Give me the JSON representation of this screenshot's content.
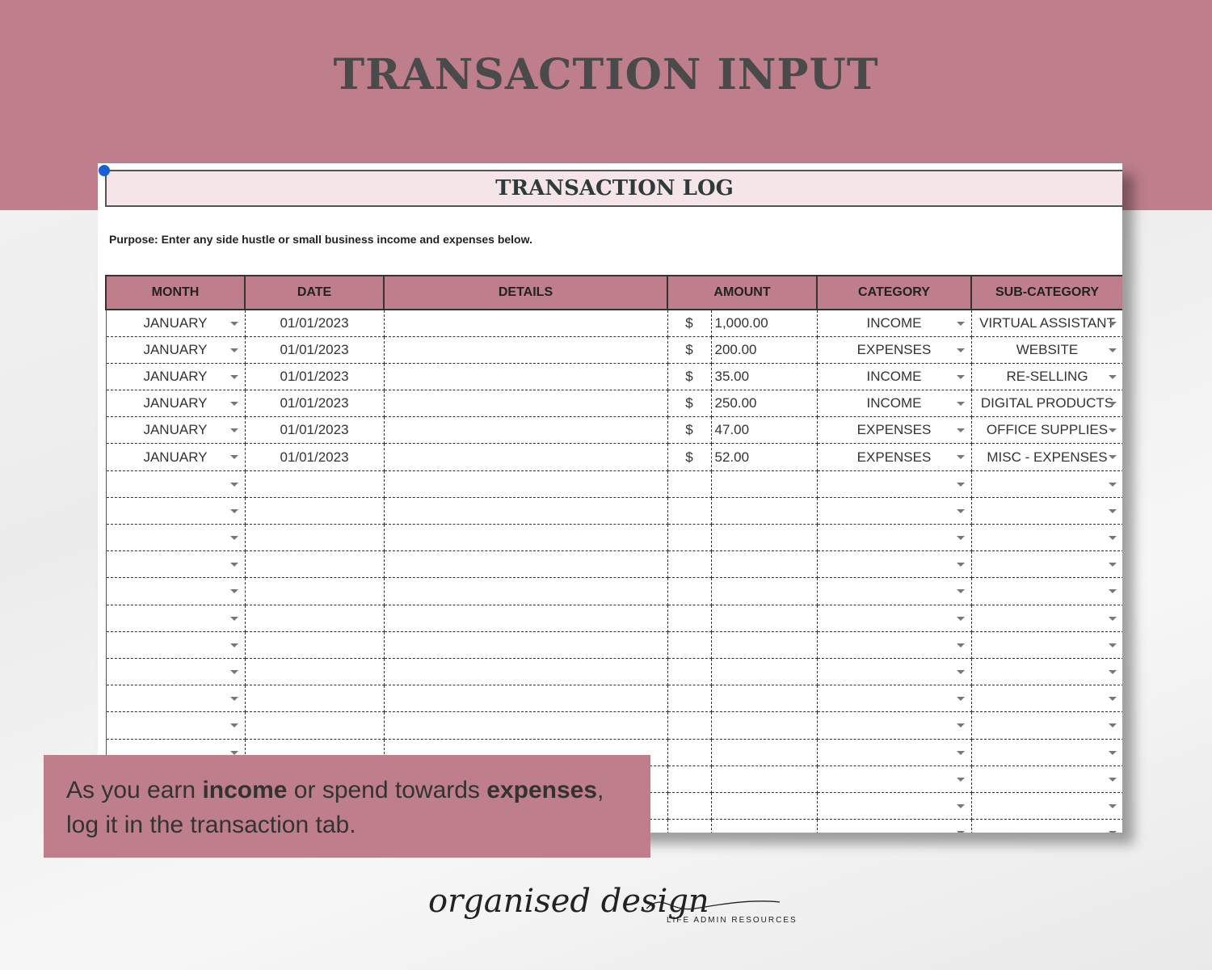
{
  "header": {
    "title": "TRANSACTION INPUT"
  },
  "sheet": {
    "title": "TRANSACTION LOG",
    "purpose": "Purpose: Enter any side hustle or small business income and expenses below.",
    "columns": [
      "MONTH",
      "DATE",
      "DETAILS",
      "AMOUNT",
      "CATEGORY",
      "SUB-CATEGORY"
    ],
    "currency": "$",
    "rows": [
      {
        "month": "JANUARY",
        "date": "01/01/2023",
        "details": "",
        "amount": "1,000.00",
        "category": "INCOME",
        "subcategory": "VIRTUAL ASSISTANT"
      },
      {
        "month": "JANUARY",
        "date": "01/01/2023",
        "details": "",
        "amount": "200.00",
        "category": "EXPENSES",
        "subcategory": "WEBSITE"
      },
      {
        "month": "JANUARY",
        "date": "01/01/2023",
        "details": "",
        "amount": "35.00",
        "category": "INCOME",
        "subcategory": "RE-SELLING"
      },
      {
        "month": "JANUARY",
        "date": "01/01/2023",
        "details": "",
        "amount": "250.00",
        "category": "INCOME",
        "subcategory": "DIGITAL PRODUCTS"
      },
      {
        "month": "JANUARY",
        "date": "01/01/2023",
        "details": "",
        "amount": "47.00",
        "category": "EXPENSES",
        "subcategory": "OFFICE SUPPLIES"
      },
      {
        "month": "JANUARY",
        "date": "01/01/2023",
        "details": "",
        "amount": "52.00",
        "category": "EXPENSES",
        "subcategory": "MISC - EXPENSES"
      }
    ]
  },
  "callout": {
    "p1": "As you earn ",
    "b1": "income",
    "p2": " or spend towards ",
    "b2": "expenses",
    "p3": ",",
    "line2": "log it in the transaction tab."
  },
  "brand": {
    "logo": "organised design",
    "tagline": "LIFE ADMIN RESOURCES"
  },
  "colors": {
    "accent": "#be7e8b",
    "title_bg": "#f5e5e8"
  }
}
